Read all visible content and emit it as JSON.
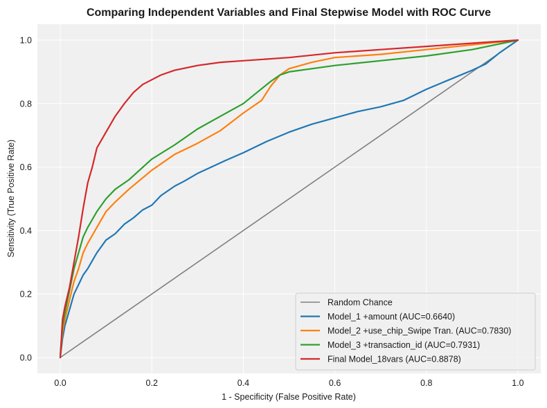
{
  "chart_data": {
    "type": "line",
    "title": "Comparing Independent Variables and Final Stepwise Model with ROC Curve",
    "xlabel": "1 - Specificity (False Positive Rate)",
    "ylabel": "Sensitivity (True Positive Rate)",
    "xlim": [
      -0.05,
      1.05
    ],
    "ylim": [
      -0.05,
      1.05
    ],
    "xticks": [
      "0.0",
      "0.2",
      "0.4",
      "0.6",
      "0.8",
      "1.0"
    ],
    "yticks": [
      "0.0",
      "0.2",
      "0.4",
      "0.6",
      "0.8",
      "1.0"
    ],
    "grid": true,
    "legend_position": "lower-right",
    "series": [
      {
        "name": "Random Chance",
        "color": "#808080",
        "x": [
          0,
          1
        ],
        "y": [
          0,
          1
        ]
      },
      {
        "name": "Model_1 +amount (AUC=0.6640)",
        "color": "#1f77b4",
        "x": [
          0,
          0.005,
          0.01,
          0.02,
          0.03,
          0.04,
          0.05,
          0.06,
          0.08,
          0.1,
          0.12,
          0.14,
          0.16,
          0.18,
          0.2,
          0.22,
          0.25,
          0.27,
          0.3,
          0.33,
          0.36,
          0.4,
          0.45,
          0.5,
          0.55,
          0.6,
          0.65,
          0.7,
          0.75,
          0.8,
          0.85,
          0.9,
          0.93,
          0.96,
          1.0
        ],
        "y": [
          0,
          0.06,
          0.1,
          0.15,
          0.2,
          0.23,
          0.26,
          0.28,
          0.33,
          0.37,
          0.39,
          0.42,
          0.44,
          0.465,
          0.48,
          0.51,
          0.54,
          0.555,
          0.58,
          0.6,
          0.62,
          0.645,
          0.68,
          0.71,
          0.735,
          0.755,
          0.775,
          0.79,
          0.81,
          0.845,
          0.875,
          0.905,
          0.925,
          0.96,
          1.0
        ]
      },
      {
        "name": "Model_2 +use_chip_Swipe Tran. (AUC=0.7830)",
        "color": "#ff7f0e",
        "x": [
          0,
          0.005,
          0.01,
          0.02,
          0.03,
          0.04,
          0.05,
          0.06,
          0.08,
          0.1,
          0.12,
          0.15,
          0.2,
          0.25,
          0.3,
          0.35,
          0.4,
          0.44,
          0.46,
          0.48,
          0.5,
          0.55,
          0.6,
          0.7,
          0.8,
          0.9,
          1.0
        ],
        "y": [
          0,
          0.08,
          0.12,
          0.18,
          0.24,
          0.28,
          0.33,
          0.36,
          0.41,
          0.46,
          0.49,
          0.53,
          0.59,
          0.64,
          0.675,
          0.715,
          0.77,
          0.81,
          0.855,
          0.89,
          0.91,
          0.93,
          0.945,
          0.955,
          0.97,
          0.985,
          1.0
        ]
      },
      {
        "name": "Model_3 +transaction_id (AUC=0.7931)",
        "color": "#2ca02c",
        "x": [
          0,
          0.005,
          0.01,
          0.02,
          0.03,
          0.04,
          0.05,
          0.06,
          0.08,
          0.1,
          0.12,
          0.15,
          0.2,
          0.25,
          0.3,
          0.35,
          0.4,
          0.43,
          0.46,
          0.48,
          0.5,
          0.55,
          0.6,
          0.7,
          0.8,
          0.9,
          1.0
        ],
        "y": [
          0,
          0.1,
          0.14,
          0.21,
          0.28,
          0.33,
          0.38,
          0.41,
          0.46,
          0.5,
          0.53,
          0.56,
          0.625,
          0.67,
          0.72,
          0.76,
          0.8,
          0.835,
          0.87,
          0.89,
          0.9,
          0.91,
          0.92,
          0.935,
          0.95,
          0.97,
          1.0
        ]
      },
      {
        "name": "Final Model_18vars (AUC=0.8878)",
        "color": "#d62728",
        "x": [
          0,
          0.005,
          0.01,
          0.02,
          0.03,
          0.04,
          0.05,
          0.06,
          0.07,
          0.08,
          0.1,
          0.12,
          0.14,
          0.16,
          0.18,
          0.2,
          0.22,
          0.25,
          0.3,
          0.35,
          0.4,
          0.5,
          0.6,
          0.7,
          0.8,
          0.9,
          1.0
        ],
        "y": [
          0,
          0.12,
          0.16,
          0.22,
          0.3,
          0.38,
          0.47,
          0.55,
          0.6,
          0.66,
          0.71,
          0.76,
          0.8,
          0.835,
          0.86,
          0.875,
          0.89,
          0.905,
          0.92,
          0.93,
          0.935,
          0.945,
          0.96,
          0.97,
          0.98,
          0.99,
          1.0
        ]
      }
    ]
  }
}
